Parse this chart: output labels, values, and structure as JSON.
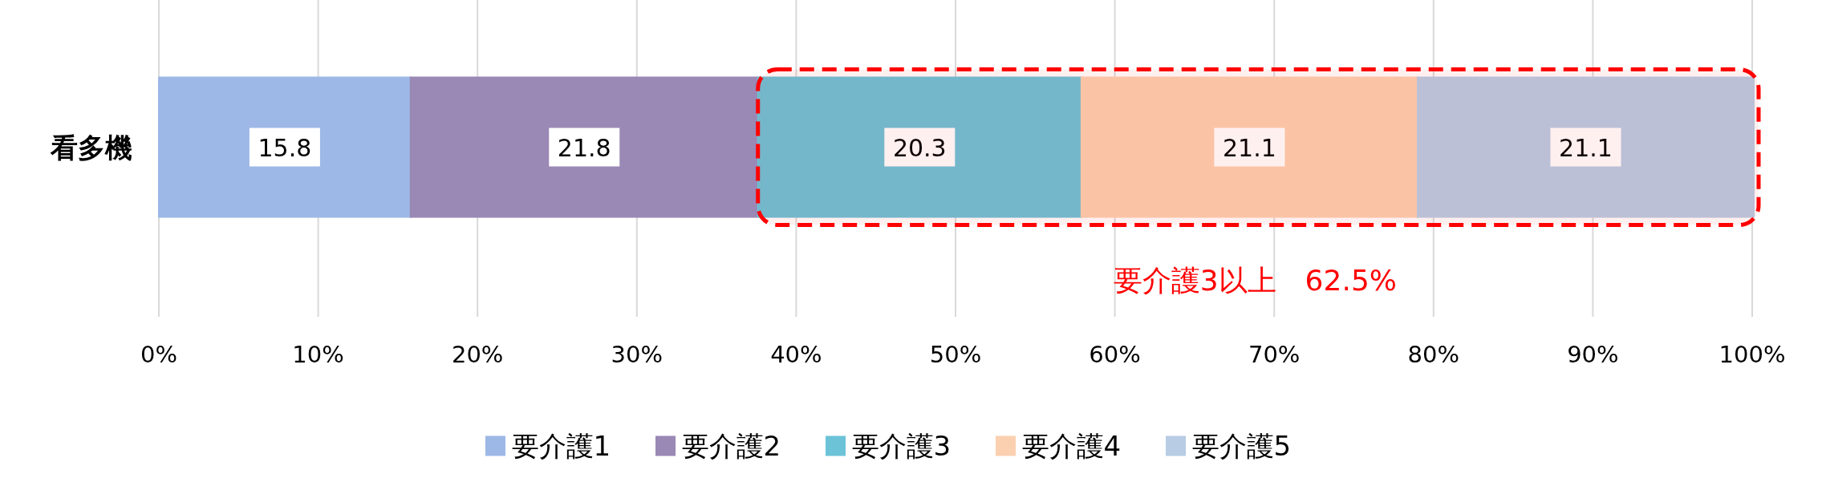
{
  "chart_data": {
    "type": "bar",
    "orientation": "horizontal",
    "stacked": true,
    "categories": [
      "看多機"
    ],
    "series": [
      {
        "name": "要介護1",
        "color": "#9db8e6",
        "values": [
          15.8
        ]
      },
      {
        "name": "要介護2",
        "color": "#9a88b5",
        "values": [
          21.8
        ]
      },
      {
        "name": "要介護3",
        "color": "#6cc3d8",
        "values": [
          20.3
        ]
      },
      {
        "name": "要介護4",
        "color": "#fbd0b0",
        "values": [
          21.1
        ]
      },
      {
        "name": "要介護5",
        "color": "#b8cce4",
        "values": [
          21.1
        ]
      }
    ],
    "xlim": [
      0,
      100
    ],
    "xticks": [
      {
        "value": 0,
        "label": "0%"
      },
      {
        "value": 10,
        "label": "10%"
      },
      {
        "value": 20,
        "label": "20%"
      },
      {
        "value": 30,
        "label": "30%"
      },
      {
        "value": 40,
        "label": "40%"
      },
      {
        "value": 50,
        "label": "50%"
      },
      {
        "value": 60,
        "label": "60%"
      },
      {
        "value": 70,
        "label": "70%"
      },
      {
        "value": 80,
        "label": "80%"
      },
      {
        "value": 90,
        "label": "90%"
      },
      {
        "value": 100,
        "label": "100%"
      }
    ],
    "bands": [
      {
        "axis": "x",
        "from": 37.6,
        "to": 100,
        "label": "要介護3以上　62.5%",
        "color": "#ff0000"
      }
    ],
    "grid": "x",
    "legend": "bottom",
    "data_labels": true
  }
}
